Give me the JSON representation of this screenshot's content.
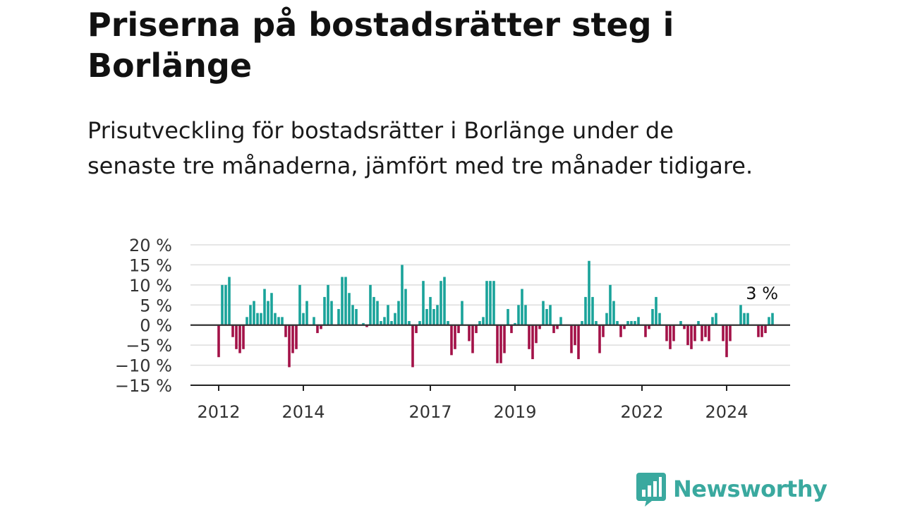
{
  "title": "Priserna på bostadsrätter steg i Borlänge",
  "subtitle": "Prisutveckling för bostadsrätter i Borlänge under de senaste tre månaderna, jämfört med tre månader tidigare.",
  "brand": "Newsworthy",
  "colors": {
    "positive": "#1aa39a",
    "negative": "#a31248",
    "brand": "#3aa99f",
    "grid": "#dddddd",
    "zero_line": "#333333"
  },
  "chart_data": {
    "type": "bar",
    "title": "Priserna på bostadsrätter steg i Borlänge",
    "xlabel": "",
    "ylabel": "",
    "ylim": [
      -15,
      20
    ],
    "yticks": [
      20,
      15,
      10,
      5,
      0,
      -5,
      -10,
      -15
    ],
    "ytick_labels": [
      "20 %",
      "15 %",
      "10 %",
      "5 %",
      "0 %",
      "−5 %",
      "−10 %",
      "−15 %"
    ],
    "x_start": "2012-01",
    "xticks": [
      {
        "label": "2012",
        "month": "2012-01"
      },
      {
        "label": "2014",
        "month": "2014-01"
      },
      {
        "label": "2017",
        "month": "2017-01"
      },
      {
        "label": "2019",
        "month": "2019-01"
      },
      {
        "label": "2022",
        "month": "2022-01"
      },
      {
        "label": "2024",
        "month": "2024-01"
      }
    ],
    "last_value_label": "3 %",
    "grid": true,
    "values": [
      -8,
      10,
      10,
      12,
      -3,
      -6,
      -7,
      -6,
      2,
      5,
      6,
      3,
      3,
      9,
      6,
      8,
      3,
      2,
      2,
      -3,
      -10.5,
      -7,
      -6,
      10,
      3,
      6,
      0,
      2,
      -2,
      -1,
      7,
      10,
      6,
      0,
      4,
      12,
      12,
      8,
      5,
      4,
      0,
      0.5,
      -0.5,
      10,
      7,
      6,
      1,
      2,
      5,
      1,
      3,
      6,
      15,
      9,
      1,
      -10.5,
      -2,
      1,
      11,
      4,
      7,
      4,
      5,
      11,
      12,
      1,
      -7.5,
      -6,
      -2,
      6,
      0,
      -4,
      -7,
      -2,
      1,
      2,
      11,
      11,
      11,
      -9.5,
      -9.5,
      -7,
      4,
      -2,
      0.5,
      5,
      9,
      5,
      -6,
      -8.5,
      -4.5,
      -1,
      6,
      4,
      5,
      -2,
      -1,
      2,
      0,
      0,
      -7,
      -5,
      -8.5,
      1,
      7,
      16,
      7,
      1,
      -7,
      -3,
      3,
      10,
      6,
      1,
      -3,
      -1,
      1,
      1,
      1,
      2,
      0,
      -3,
      -1,
      4,
      7,
      3,
      0,
      -4,
      -6,
      -4,
      0,
      1,
      -1,
      -5,
      -6,
      -4,
      1,
      -4,
      -3,
      -4,
      2,
      3,
      0,
      -4,
      -8,
      -4,
      0,
      0,
      5,
      3,
      3,
      0,
      0,
      -3,
      -3,
      -2,
      2,
      3
    ]
  }
}
